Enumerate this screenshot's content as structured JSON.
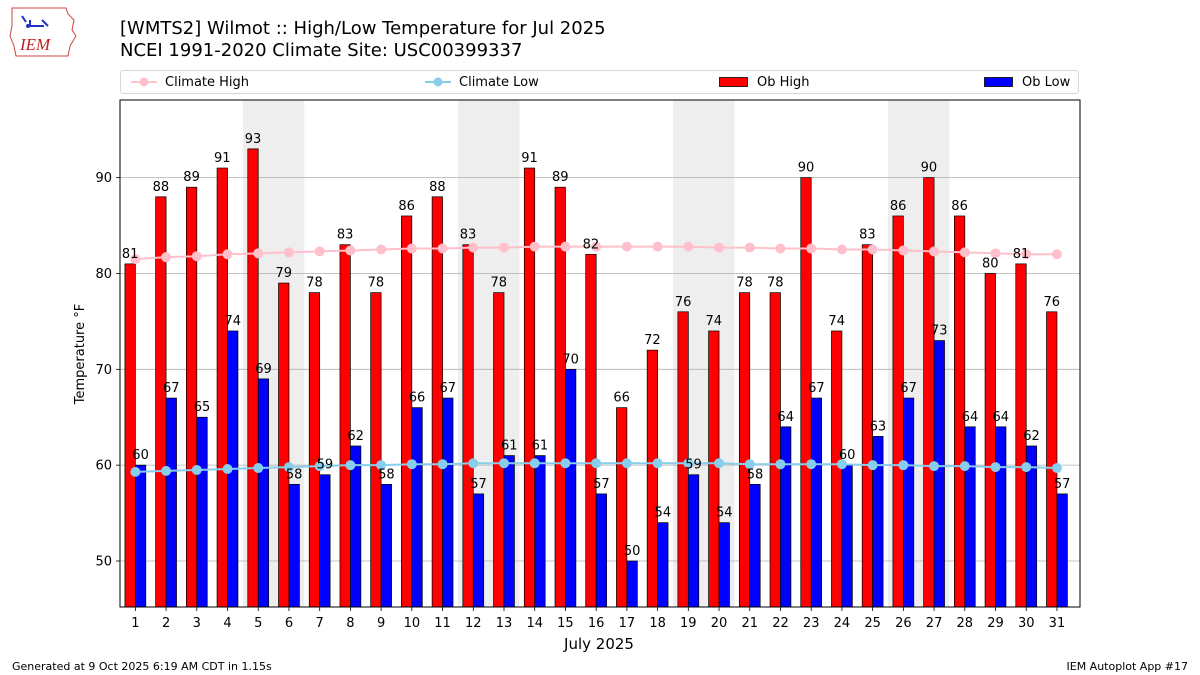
{
  "header": {
    "title_line1": "[WMTS2] Wilmot :: High/Low Temperature for Jul 2025",
    "title_line2": "NCEI 1991-2020 Climate Site: USC00399337",
    "logo_text": "IEM"
  },
  "legend": {
    "items": [
      {
        "label": "Climate High",
        "kind": "line",
        "color": "#ffc0cb"
      },
      {
        "label": "Climate Low",
        "kind": "line",
        "color": "#87ceeb"
      },
      {
        "label": "Ob High",
        "kind": "bar",
        "color": "#ff0000"
      },
      {
        "label": "Ob Low",
        "kind": "bar",
        "color": "#0000ff"
      }
    ]
  },
  "footer": {
    "left": "Generated at 9 Oct 2025 6:19 AM CDT in 1.15s",
    "right": "IEM Autoplot App #17"
  },
  "chart_data": {
    "type": "bar",
    "title": "[WMTS2] Wilmot :: High/Low Temperature for Jul 2025",
    "subtitle": "NCEI 1991-2020 Climate Site: USC00399337",
    "xlabel": "July 2025",
    "ylabel": "Temperature °F",
    "ylim": [
      45.2,
      98.1
    ],
    "yticks": [
      50,
      60,
      70,
      80,
      90
    ],
    "grid": true,
    "legend_position": "top",
    "categories": [
      "1",
      "2",
      "3",
      "4",
      "5",
      "6",
      "7",
      "8",
      "9",
      "10",
      "11",
      "12",
      "13",
      "14",
      "15",
      "16",
      "17",
      "18",
      "19",
      "20",
      "21",
      "22",
      "23",
      "24",
      "25",
      "26",
      "27",
      "28",
      "29",
      "30",
      "31"
    ],
    "weekend_shading_days": [
      [
        5,
        6
      ],
      [
        12,
        13
      ],
      [
        19,
        20
      ],
      [
        26,
        27
      ]
    ],
    "series": [
      {
        "name": "Ob High",
        "type": "bar",
        "color": "#ff0000",
        "values": [
          81,
          88,
          89,
          91,
          93,
          79,
          78,
          83,
          78,
          86,
          88,
          83,
          78,
          91,
          89,
          82,
          66,
          72,
          76,
          74,
          78,
          78,
          90,
          74,
          83,
          86,
          90,
          86,
          80,
          81,
          76
        ]
      },
      {
        "name": "Ob Low",
        "type": "bar",
        "color": "#0000ff",
        "values": [
          60,
          67,
          65,
          74,
          69,
          58,
          59,
          62,
          58,
          66,
          67,
          57,
          61,
          61,
          70,
          57,
          50,
          54,
          59,
          54,
          58,
          64,
          67,
          60,
          63,
          67,
          73,
          64,
          64,
          62,
          57
        ]
      },
      {
        "name": "Climate High",
        "type": "line",
        "color": "#ffc0cb",
        "values": [
          81.5,
          81.7,
          81.8,
          82.0,
          82.1,
          82.2,
          82.3,
          82.4,
          82.5,
          82.6,
          82.6,
          82.7,
          82.7,
          82.8,
          82.8,
          82.8,
          82.8,
          82.8,
          82.8,
          82.7,
          82.7,
          82.6,
          82.6,
          82.5,
          82.5,
          82.4,
          82.3,
          82.2,
          82.1,
          82.0,
          82.0
        ]
      },
      {
        "name": "Climate Low",
        "type": "line",
        "color": "#87ceeb",
        "values": [
          59.3,
          59.4,
          59.5,
          59.6,
          59.7,
          59.8,
          59.9,
          60.0,
          60.0,
          60.1,
          60.1,
          60.2,
          60.2,
          60.2,
          60.2,
          60.2,
          60.2,
          60.2,
          60.2,
          60.2,
          60.1,
          60.1,
          60.1,
          60.1,
          60.0,
          60.0,
          59.9,
          59.9,
          59.8,
          59.8,
          59.7
        ]
      }
    ]
  }
}
